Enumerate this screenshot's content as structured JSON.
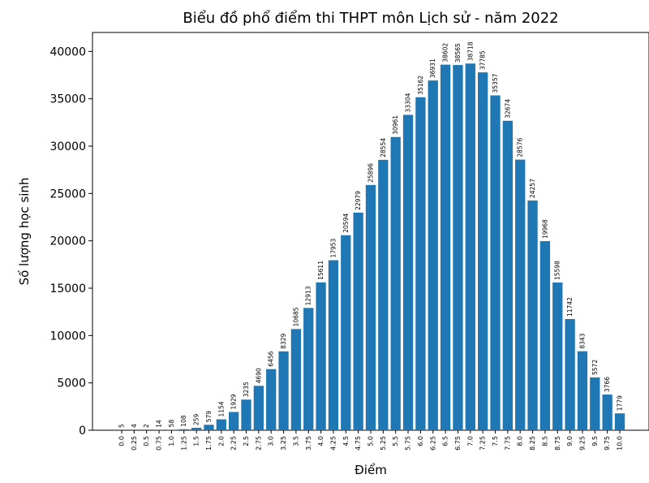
{
  "chart_data": {
    "type": "bar",
    "title": "Biểu đồ phổ điểm thi THPT môn Lịch sử - năm 2022",
    "xlabel": "Điểm",
    "ylabel": "Số lượng học sinh",
    "categories": [
      "0.0",
      "0.25",
      "0.5",
      "0.75",
      "1.0",
      "1.25",
      "1.5",
      "1.75",
      "2.0",
      "2.25",
      "2.5",
      "2.75",
      "3.0",
      "3.25",
      "3.5",
      "3.75",
      "4.0",
      "4.25",
      "4.5",
      "4.75",
      "5.0",
      "5.25",
      "5.5",
      "5.75",
      "6.0",
      "6.25",
      "6.5",
      "6.75",
      "7.0",
      "7.25",
      "7.5",
      "7.75",
      "8.0",
      "8.25",
      "8.5",
      "8.75",
      "9.0",
      "9.25",
      "9.5",
      "9.75",
      "10.0"
    ],
    "values": [
      5,
      4,
      2,
      14,
      58,
      108,
      259,
      579,
      1154,
      1929,
      3235,
      4690,
      6456,
      8329,
      10685,
      12913,
      15611,
      17953,
      20594,
      22979,
      25896,
      28554,
      30961,
      33304,
      35162,
      36931,
      38602,
      38565,
      38718,
      37785,
      35357,
      32674,
      28576,
      24257,
      19968,
      15598,
      11742,
      8343,
      5572,
      3766,
      1779
    ],
    "yticks": [
      0,
      5000,
      10000,
      15000,
      20000,
      25000,
      30000,
      35000,
      40000
    ],
    "ylim": [
      0,
      42000
    ],
    "bar_color": "#1f77b4",
    "grid": false,
    "legend": "none"
  }
}
